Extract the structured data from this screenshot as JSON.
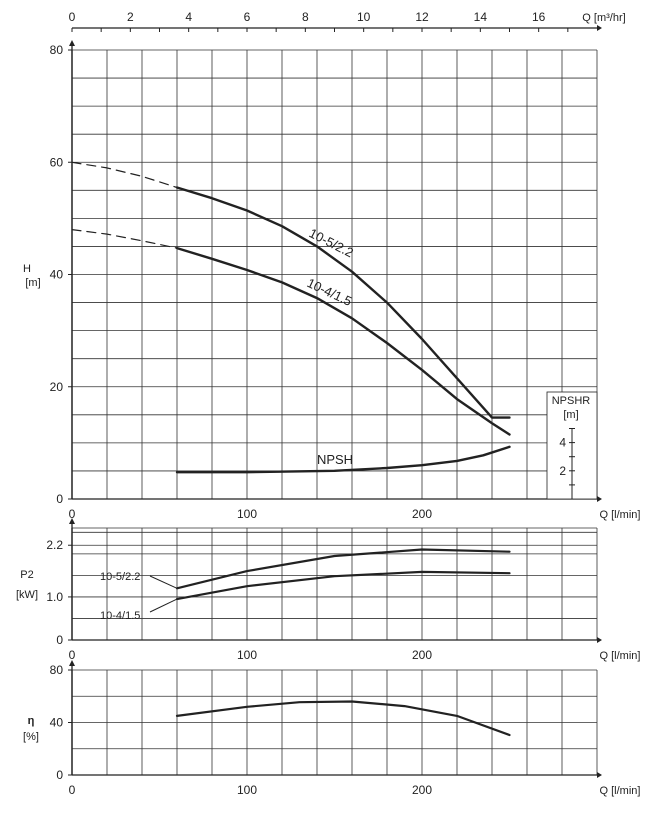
{
  "chart_data": [
    {
      "type": "line",
      "panel": "head",
      "ylabel": [
        "H",
        "[m]"
      ],
      "xlabel": "Q [l/min]",
      "xlabel_top": "Q [m³/hr]",
      "xlim": [
        0,
        300
      ],
      "ylim": [
        0,
        80
      ],
      "x_ticks": [
        "0",
        "100",
        "200"
      ],
      "y_ticks": [
        "0",
        "20",
        "40",
        "60",
        "80"
      ],
      "top_ticks": [
        "0",
        "2",
        "4",
        "6",
        "8",
        "10",
        "12",
        "14",
        "16"
      ],
      "grid": true,
      "series": [
        {
          "name": "10-5/2.2",
          "dashed_x": [
            0,
            20,
            40,
            60
          ],
          "dashed_y": [
            60,
            59,
            57.5,
            55.5
          ],
          "x": [
            60,
            80,
            100,
            120,
            140,
            160,
            180,
            200,
            220,
            240,
            250
          ],
          "y": [
            55.5,
            53.6,
            51.4,
            48.6,
            45,
            40.5,
            35,
            28.5,
            21.5,
            14.5,
            14.5
          ]
        },
        {
          "name": "10-4/1.5",
          "dashed_x": [
            0,
            20,
            40,
            60
          ],
          "dashed_y": [
            48,
            47.2,
            46,
            44.7
          ],
          "x": [
            60,
            80,
            100,
            120,
            140,
            160,
            180,
            200,
            220,
            240,
            250
          ],
          "y": [
            44.7,
            42.8,
            40.8,
            38.6,
            35.8,
            32.2,
            27.8,
            23,
            17.8,
            13.5,
            11.5
          ]
        },
        {
          "name": "NPSH",
          "axis": "npshr",
          "x": [
            60,
            100,
            150,
            180,
            200,
            220,
            235,
            250
          ],
          "y": [
            1.9,
            1.9,
            2.0,
            2.2,
            2.4,
            2.7,
            3.1,
            3.7
          ]
        }
      ],
      "npshr_axis": {
        "label": [
          "NPSHR",
          "[m]"
        ],
        "ticks": [
          "2",
          "4"
        ],
        "range": [
          0,
          8
        ]
      }
    },
    {
      "type": "line",
      "panel": "power",
      "ylabel": [
        "P2",
        "[kW]"
      ],
      "xlabel": "Q [l/min]",
      "xlim": [
        0,
        300
      ],
      "ylim": [
        0,
        2.6
      ],
      "x_ticks": [
        "0",
        "100",
        "200"
      ],
      "y_ticks": [
        "0",
        "1.0",
        "2.2"
      ],
      "grid": true,
      "series": [
        {
          "name": "10-5/2.2",
          "x": [
            60,
            100,
            150,
            200,
            250
          ],
          "y": [
            1.2,
            1.6,
            1.95,
            2.1,
            2.05
          ]
        },
        {
          "name": "10-4/1.5",
          "x": [
            60,
            100,
            150,
            200,
            250
          ],
          "y": [
            0.95,
            1.25,
            1.48,
            1.58,
            1.55
          ]
        }
      ]
    },
    {
      "type": "line",
      "panel": "efficiency",
      "ylabel": [
        "η",
        "[%]"
      ],
      "xlabel": "Q [l/min]",
      "xlim": [
        0,
        300
      ],
      "ylim": [
        0,
        80
      ],
      "x_ticks": [
        "0",
        "100",
        "200"
      ],
      "y_ticks": [
        "0",
        "40",
        "80"
      ],
      "grid": true,
      "series": [
        {
          "name": "",
          "x": [
            60,
            100,
            130,
            160,
            190,
            220,
            250
          ],
          "y": [
            45,
            52,
            55.5,
            56,
            52.5,
            45,
            30.5
          ]
        }
      ]
    }
  ]
}
